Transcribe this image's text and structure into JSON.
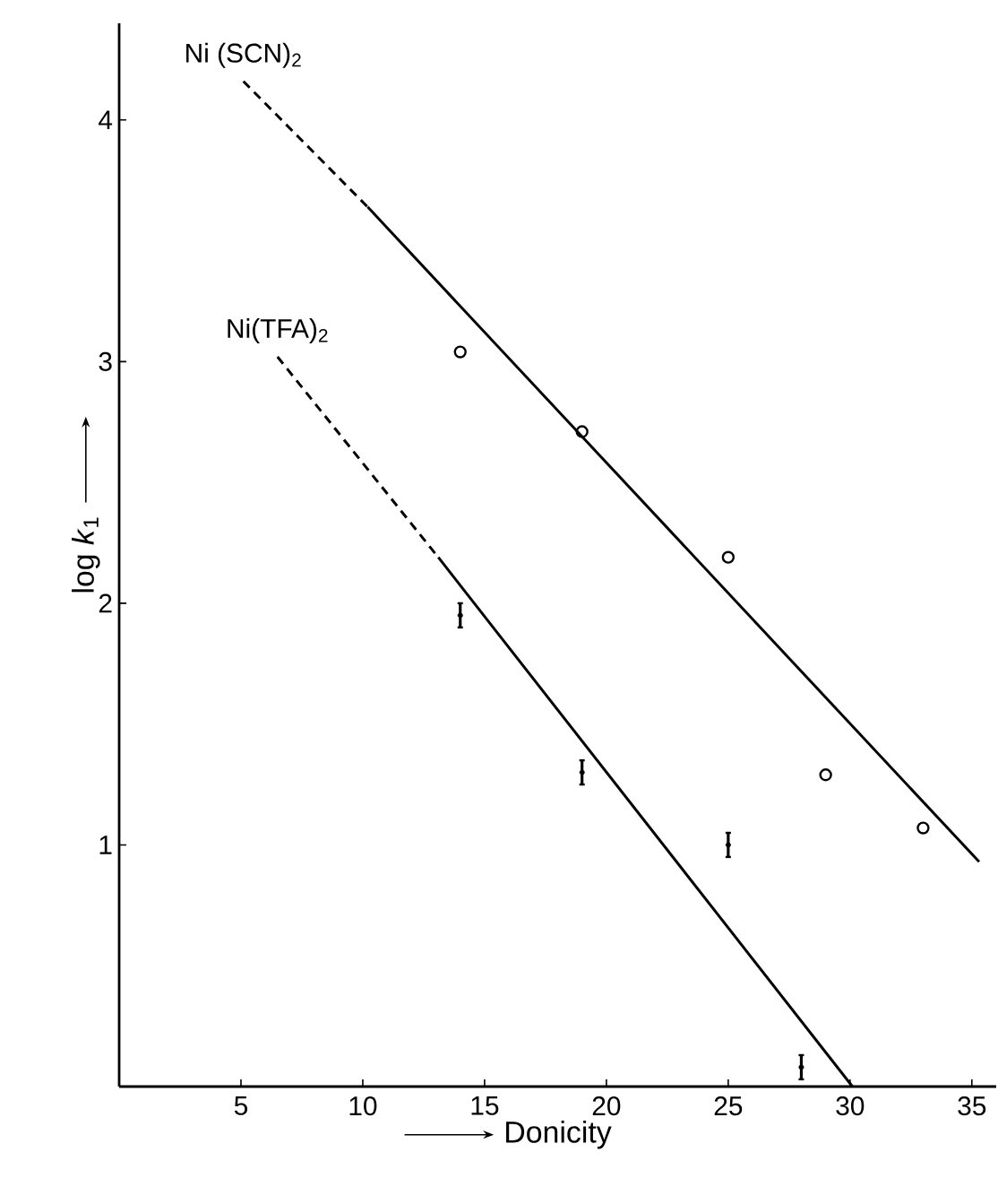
{
  "chart_data": {
    "type": "scatter",
    "xlabel": "Donicity",
    "ylabel": "log *k*$_{1}$",
    "xlim": [
      0,
      36
    ],
    "ylim": [
      0,
      4.4
    ],
    "xticks": [
      5,
      10,
      15,
      20,
      25,
      30,
      35
    ],
    "yticks": [
      1,
      2,
      3,
      4
    ],
    "grid": false,
    "series": [
      {
        "marker": "circle",
        "color": "#000000",
        "x": [
          14,
          19,
          25,
          29,
          33
        ],
        "values": [
          3.04,
          2.71,
          2.19,
          1.29,
          1.07
        ]
      },
      {
        "marker": "circle",
        "color": "#000000",
        "x": [
          14,
          19,
          25,
          28
        ],
        "values": [
          1.95,
          1.3,
          1.0,
          0.08
        ],
        "errors": [
          0.05,
          0.05,
          0.05,
          0.05
        ]
      },
      {
        "type": "line",
        "line_style": "dashed",
        "color": "#000000",
        "x": [
          5.1,
          10.2
        ],
        "values": [
          4.16,
          3.64
        ]
      },
      {
        "type": "line",
        "line_style": "solid",
        "color": "#000000",
        "x": [
          10.2,
          35.3
        ],
        "values": [
          3.64,
          0.93
        ]
      },
      {
        "type": "line",
        "line_style": "dashed",
        "color": "#000000",
        "x": [
          6.5,
          13.1
        ],
        "values": [
          3.02,
          2.19
        ]
      },
      {
        "type": "line",
        "line_style": "solid",
        "color": "#000000",
        "x": [
          13.1,
          30.1
        ],
        "values": [
          2.19,
          0.0
        ]
      }
    ],
    "annotations": [
      "Ni (SCN)$_{2}$",
      "Ni(TFA)$_{2}$"
    ]
  }
}
